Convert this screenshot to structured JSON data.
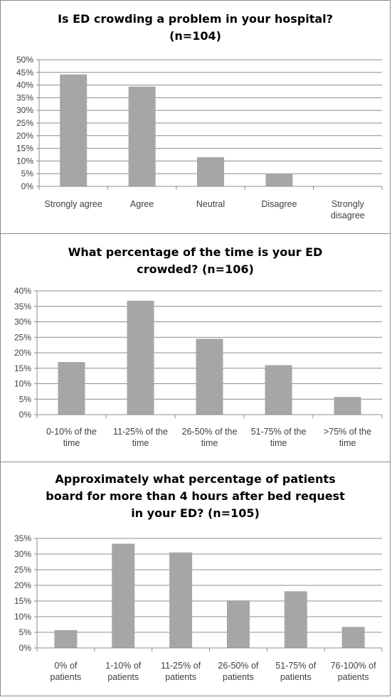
{
  "chart_data": [
    {
      "type": "bar",
      "title": "Is ED crowding a problem in your hospital?\n(n=104)",
      "categories": [
        "Strongly agree",
        "Agree",
        "Neutral",
        "Disagree",
        "Strongly\ndisagree"
      ],
      "values": [
        44.2,
        39.4,
        11.5,
        4.8,
        0
      ],
      "yticks": [
        "0%",
        "5%",
        "10%",
        "15%",
        "20%",
        "25%",
        "30%",
        "35%",
        "40%",
        "45%",
        "50%"
      ],
      "ylim": [
        0,
        50
      ],
      "ystep": 5,
      "grid": true,
      "bar_color": "#a6a6a6",
      "grid_color": "#8c8c8c"
    },
    {
      "type": "bar",
      "title": "What percentage of the time is your ED\ncrowded? (n=106)",
      "categories": [
        "0-10% of the\ntime",
        "11-25% of the\ntime",
        "26-50% of the\ntime",
        "51-75% of the\ntime",
        ">75% of the\ntime"
      ],
      "values": [
        17.0,
        36.8,
        24.5,
        16.0,
        5.7
      ],
      "yticks": [
        "0%",
        "5%",
        "10%",
        "15%",
        "20%",
        "25%",
        "30%",
        "35%",
        "40%"
      ],
      "ylim": [
        0,
        40
      ],
      "ystep": 5,
      "grid": true,
      "bar_color": "#a6a6a6",
      "grid_color": "#8c8c8c"
    },
    {
      "type": "bar",
      "title": "Approximately what percentage of patients\nboard for more than 4 hours after bed request\nin your ED? (n=105)",
      "categories": [
        "0% of\npatients",
        "1-10% of\npatients",
        "11-25% of\npatients",
        "26-50% of\npatients",
        "51-75% of\npatients",
        "76-100% of\npatients"
      ],
      "values": [
        5.7,
        33.3,
        30.5,
        15.2,
        18.1,
        6.7
      ],
      "yticks": [
        "0%",
        "5%",
        "10%",
        "15%",
        "20%",
        "25%",
        "30%",
        "35%"
      ],
      "ylim": [
        0,
        35
      ],
      "ystep": 5,
      "grid": true,
      "bar_color": "#a6a6a6",
      "grid_color": "#8c8c8c"
    }
  ]
}
